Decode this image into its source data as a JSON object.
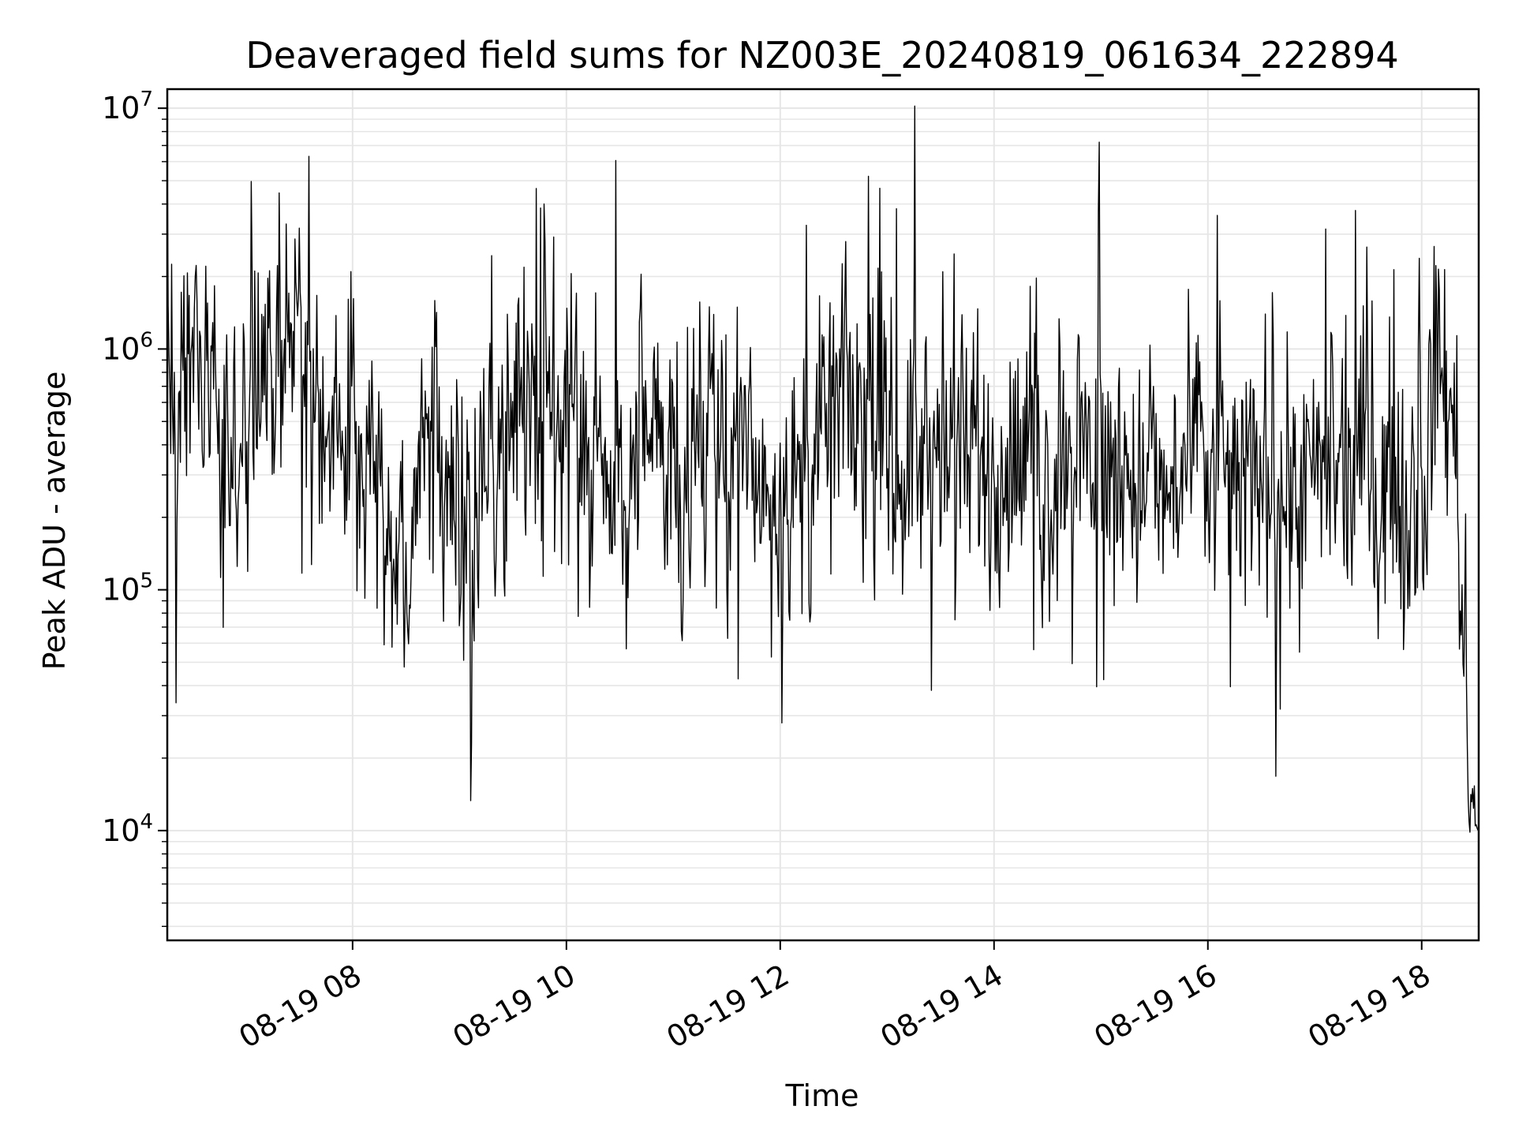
{
  "chart_data": {
    "type": "line",
    "title": "Deaveraged field sums for NZ003E_20240819_061634_222894",
    "xlabel": "Time",
    "ylabel": "Peak ADU - average",
    "yscale": "log",
    "grid": true,
    "line_color": "#000000",
    "grid_color": "#e6e6e6",
    "xlim": [
      "2024-08-19 06:16",
      "2024-08-19 18:32"
    ],
    "ylim": [
      3500,
      12000000
    ],
    "x_ticks": [
      {
        "t": "2024-08-19 08:00",
        "label": "08-19 08"
      },
      {
        "t": "2024-08-19 10:00",
        "label": "08-19 10"
      },
      {
        "t": "2024-08-19 12:00",
        "label": "08-19 12"
      },
      {
        "t": "2024-08-19 14:00",
        "label": "08-19 14"
      },
      {
        "t": "2024-08-19 16:00",
        "label": "08-19 16"
      },
      {
        "t": "2024-08-19 18:00",
        "label": "08-19 18"
      }
    ],
    "y_ticks": [
      {
        "value": 10000,
        "base": "10",
        "exp": "4"
      },
      {
        "value": 100000,
        "base": "10",
        "exp": "5"
      },
      {
        "value": 1000000,
        "base": "10",
        "exp": "6"
      },
      {
        "value": 10000000,
        "base": "10",
        "exp": "7"
      }
    ],
    "series": [
      {
        "x": [
          "2024-08-19 06:16",
          "2024-08-19 06:30",
          "2024-08-19 06:45",
          "2024-08-19 07:00",
          "2024-08-19 07:15",
          "2024-08-19 07:30",
          "2024-08-19 07:45",
          "2024-08-19 08:00",
          "2024-08-19 08:15",
          "2024-08-19 08:30",
          "2024-08-19 08:45",
          "2024-08-19 09:00",
          "2024-08-19 09:15",
          "2024-08-19 09:30",
          "2024-08-19 09:45",
          "2024-08-19 10:00",
          "2024-08-19 10:15",
          "2024-08-19 10:30",
          "2024-08-19 10:45",
          "2024-08-19 11:00",
          "2024-08-19 11:15",
          "2024-08-19 11:30",
          "2024-08-19 11:45",
          "2024-08-19 12:00",
          "2024-08-19 12:15",
          "2024-08-19 12:30",
          "2024-08-19 12:45",
          "2024-08-19 13:00",
          "2024-08-19 13:15",
          "2024-08-19 13:30",
          "2024-08-19 13:45",
          "2024-08-19 14:00",
          "2024-08-19 14:15",
          "2024-08-19 14:30",
          "2024-08-19 14:45",
          "2024-08-19 15:00",
          "2024-08-19 15:15",
          "2024-08-19 15:30",
          "2024-08-19 15:45",
          "2024-08-19 16:00",
          "2024-08-19 16:15",
          "2024-08-19 16:30",
          "2024-08-19 16:45",
          "2024-08-19 17:00",
          "2024-08-19 17:15",
          "2024-08-19 17:30",
          "2024-08-19 17:45",
          "2024-08-19 18:00",
          "2024-08-19 18:10",
          "2024-08-19 18:20",
          "2024-08-19 18:26",
          "2024-08-19 18:32"
        ],
        "y": [
          600000,
          800000,
          450000,
          300000,
          900000,
          1000000,
          450000,
          500000,
          300000,
          100000,
          700000,
          200000,
          250000,
          700000,
          400000,
          450000,
          350000,
          300000,
          400000,
          350000,
          450000,
          400000,
          300000,
          300000,
          250000,
          700000,
          550000,
          300000,
          350000,
          400000,
          320000,
          300000,
          350000,
          250000,
          450000,
          350000,
          300000,
          250000,
          300000,
          350000,
          280000,
          350000,
          300000,
          250000,
          300000,
          280000,
          300000,
          250000,
          900000,
          400000,
          15000,
          11000
        ]
      }
    ]
  }
}
